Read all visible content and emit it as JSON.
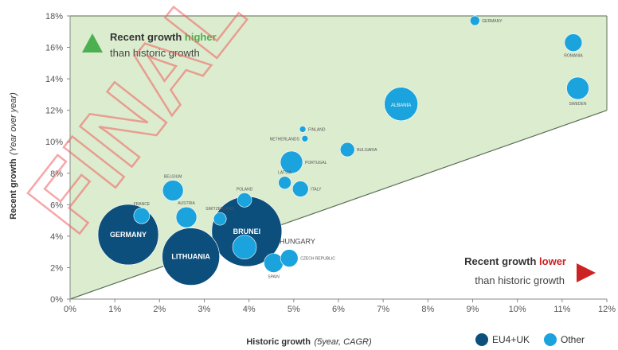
{
  "chart_data": {
    "type": "scatter",
    "xlabel": "Historic growth",
    "xlabel_note": "(5year, CAGR)",
    "ylabel": "Recent growth",
    "ylabel_note": "(Year over year)",
    "xlim": [
      0,
      12
    ],
    "ylim": [
      0,
      18
    ],
    "x_ticks": [
      "0%",
      "1%",
      "2%",
      "3%",
      "4%",
      "5%",
      "6%",
      "7%",
      "8%",
      "9%",
      "10%",
      "11%",
      "12%"
    ],
    "y_ticks": [
      "0%",
      "2%",
      "4%",
      "6%",
      "8%",
      "10%",
      "12%",
      "14%",
      "16%",
      "18%"
    ],
    "grid": false,
    "legend_position": "bottom-right",
    "colors": {
      "eu4uk": "#0c4f7c",
      "other": "#1aa3dd",
      "region_fill": "#dceccf",
      "diagonal": "#5a6e55",
      "green": "#4caf50",
      "red": "#cc2222",
      "watermark": "#f06060"
    },
    "diagonal_line": {
      "from": [
        0,
        0
      ],
      "to": [
        12,
        12
      ]
    },
    "series": [
      {
        "name": "EU4+UK",
        "color": "#0c4f7c",
        "points": [
          {
            "label": "GERMANY",
            "x": 1.3,
            "y": 4.1,
            "size": 38,
            "label_pos": "inside"
          },
          {
            "label": "LITHUANIA",
            "x": 2.7,
            "y": 2.7,
            "size": 36,
            "label_pos": "inside"
          },
          {
            "label": "BRUNEI",
            "x": 3.95,
            "y": 4.3,
            "size": 44,
            "label_pos": "inside"
          }
        ]
      },
      {
        "name": "Other",
        "color": "#1aa3dd",
        "points": [
          {
            "label": "GERMANY",
            "x": 9.05,
            "y": 17.7,
            "size": 6,
            "label_pos": "right"
          },
          {
            "label": "ROMANIA",
            "x": 11.25,
            "y": 16.3,
            "size": 11,
            "label_pos": "below"
          },
          {
            "label": "SWEDEN",
            "x": 11.35,
            "y": 13.4,
            "size": 14,
            "label_pos": "below"
          },
          {
            "label": "ALBANIA",
            "x": 7.4,
            "y": 12.4,
            "size": 21,
            "label_pos": "inside"
          },
          {
            "label": "FINLAND",
            "x": 5.2,
            "y": 10.8,
            "size": 4,
            "label_pos": "right"
          },
          {
            "label": "NETHERLANDS",
            "x": 5.25,
            "y": 10.2,
            "size": 4,
            "label_pos": "left"
          },
          {
            "label": "BULGARIA",
            "x": 6.2,
            "y": 9.5,
            "size": 9,
            "label_pos": "right"
          },
          {
            "label": "PORTUGAL",
            "x": 4.95,
            "y": 8.7,
            "size": 14,
            "label_pos": "right"
          },
          {
            "label": "BELGIUM",
            "x": 2.3,
            "y": 6.9,
            "size": 13,
            "label_pos": "above"
          },
          {
            "label": "FRANCE",
            "x": 1.6,
            "y": 5.3,
            "size": 10,
            "label_pos": "above"
          },
          {
            "label": "AUSTRIA",
            "x": 2.6,
            "y": 5.2,
            "size": 13,
            "label_pos": "above"
          },
          {
            "label": "SWITZERLAND",
            "x": 3.35,
            "y": 5.1,
            "size": 8,
            "label_pos": "above"
          },
          {
            "label": "POLAND",
            "x": 3.9,
            "y": 6.3,
            "size": 9,
            "label_pos": "above"
          },
          {
            "label": "LATVIA",
            "x": 4.8,
            "y": 7.4,
            "size": 8,
            "label_pos": "above"
          },
          {
            "label": "ITALY",
            "x": 5.15,
            "y": 7.0,
            "size": 10,
            "label_pos": "right"
          },
          {
            "label": "HUNGARY",
            "x": 3.9,
            "y": 3.3,
            "size": 15,
            "label_pos": "outside-right"
          },
          {
            "label": "SPAIN",
            "x": 4.55,
            "y": 2.3,
            "size": 12,
            "label_pos": "below"
          },
          {
            "label": "CZECH REPUBLIC",
            "x": 4.9,
            "y": 2.6,
            "size": 11,
            "label_pos": "right"
          }
        ]
      }
    ],
    "annotations": {
      "upper_bold_a": "Recent growth ",
      "upper_color_word": "higher",
      "upper_line2": "than historic growth",
      "lower_bold_a": "Recent growth ",
      "lower_color_word": "lower",
      "lower_line2": "than historic growth"
    },
    "legend": [
      {
        "label": "EU4+UK",
        "color": "#0c4f7c"
      },
      {
        "label": "Other",
        "color": "#1aa3dd"
      }
    ],
    "watermark": "FINAL"
  }
}
